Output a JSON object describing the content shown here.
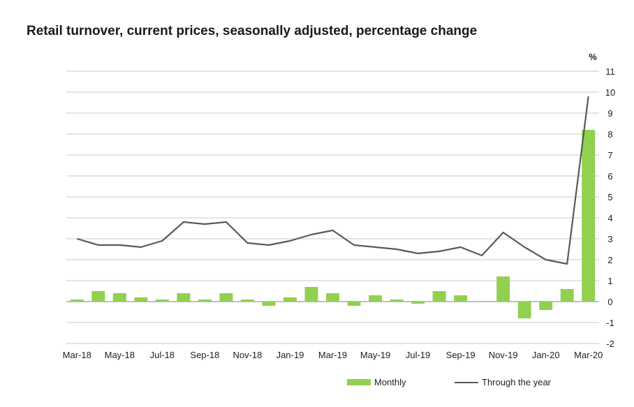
{
  "chart_data": {
    "type": "bar",
    "title": "Retail turnover, current prices, seasonally adjusted, percentage change",
    "ylabel": "%",
    "xlabel": "",
    "ylim": [
      -2,
      11
    ],
    "yticks": [
      "-2",
      "-1",
      "0",
      "1",
      "2",
      "3",
      "4",
      "5",
      "6",
      "7",
      "8",
      "9",
      "10",
      "11"
    ],
    "grid": true,
    "legend_position": "bottom",
    "categories": [
      "Mar-18",
      "Apr-18",
      "May-18",
      "Jun-18",
      "Jul-18",
      "Aug-18",
      "Sep-18",
      "Oct-18",
      "Nov-18",
      "Dec-18",
      "Jan-19",
      "Feb-19",
      "Mar-19",
      "Apr-19",
      "May-19",
      "Jun-19",
      "Jul-19",
      "Aug-19",
      "Sep-19",
      "Oct-19",
      "Nov-19",
      "Dec-19",
      "Jan-20",
      "Feb-20",
      "Mar-20"
    ],
    "x_tick_labels": [
      "Mar-18",
      "May-18",
      "Jul-18",
      "Sep-18",
      "Nov-18",
      "Jan-19",
      "Mar-19",
      "May-19",
      "Jul-19",
      "Sep-19",
      "Nov-19",
      "Jan-20",
      "Mar-20"
    ],
    "series": [
      {
        "name": "Monthly",
        "type": "bar",
        "color": "#92d050",
        "values": [
          0.1,
          0.5,
          0.4,
          0.2,
          0.1,
          0.4,
          0.1,
          0.4,
          0.1,
          -0.2,
          0.2,
          0.7,
          0.4,
          -0.2,
          0.3,
          0.1,
          -0.1,
          0.5,
          0.3,
          0.0,
          1.2,
          -0.8,
          -0.4,
          0.6,
          8.2
        ]
      },
      {
        "name": "Through the year",
        "type": "line",
        "color": "#595959",
        "values": [
          3.0,
          2.7,
          2.7,
          2.6,
          2.9,
          3.8,
          3.7,
          3.8,
          2.8,
          2.7,
          2.9,
          3.2,
          3.4,
          2.7,
          2.6,
          2.5,
          2.3,
          2.4,
          2.6,
          2.2,
          3.3,
          2.6,
          2.0,
          1.8,
          9.8
        ]
      }
    ]
  }
}
